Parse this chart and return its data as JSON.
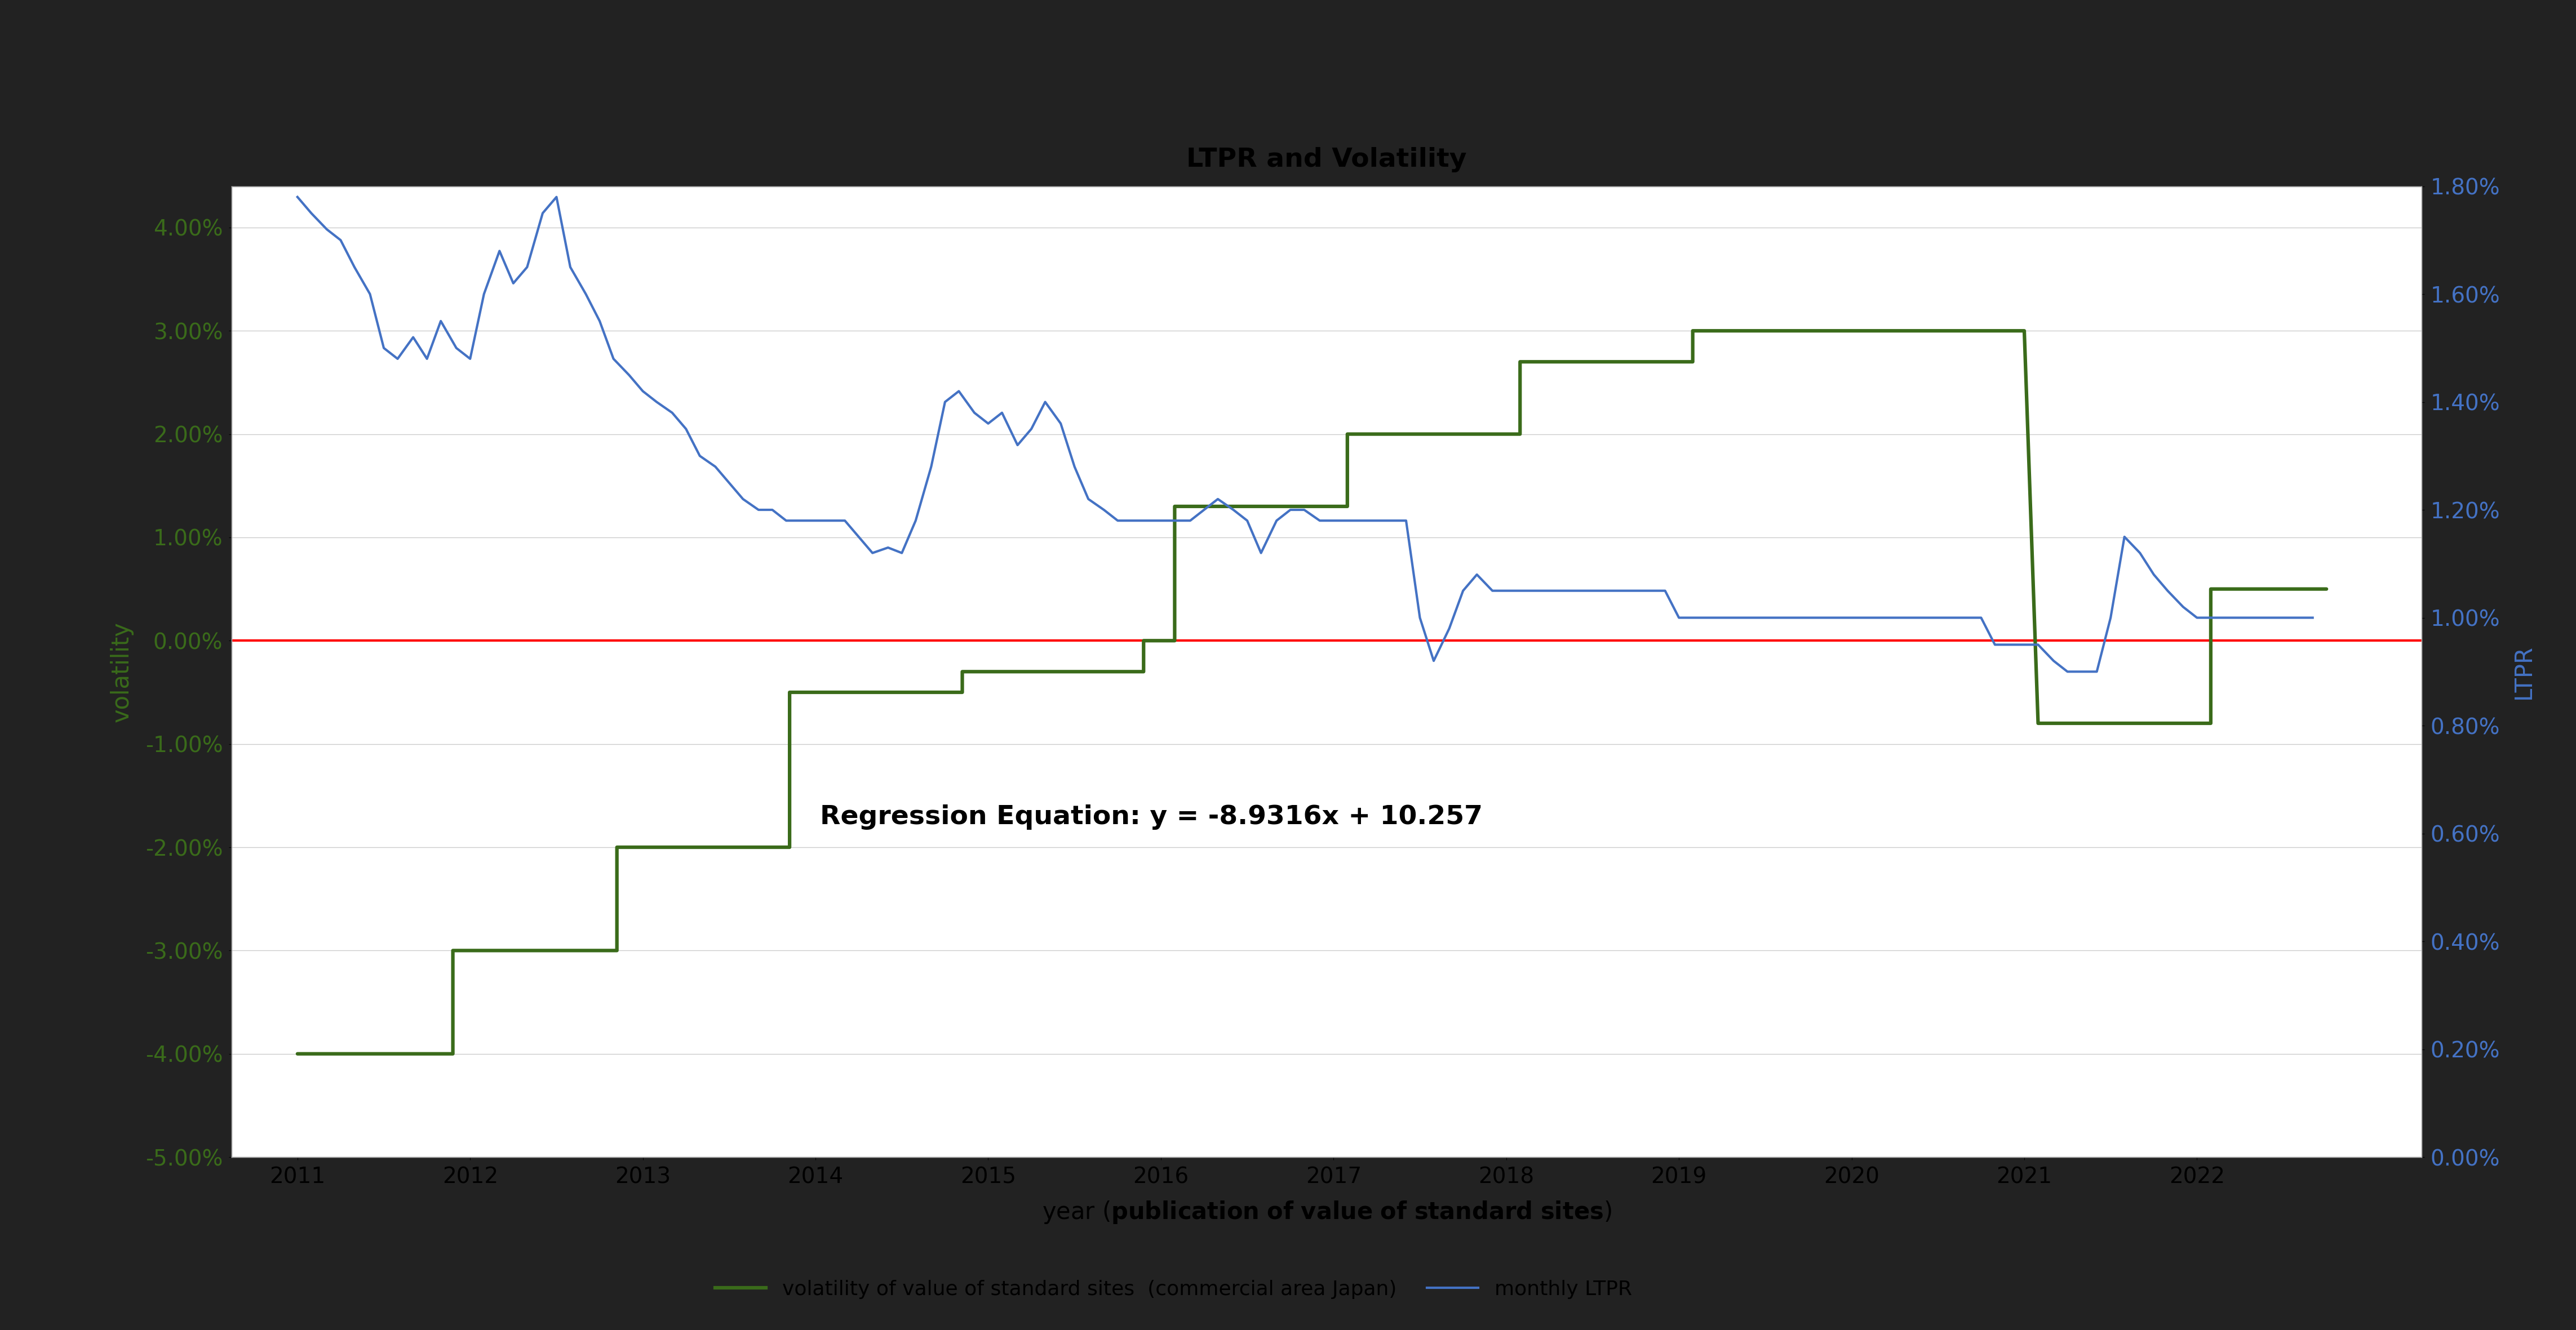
{
  "title": "LTPR and Volatility",
  "xlabel_normal": "year (",
  "xlabel_bold": "publication of value of standard sites",
  "xlabel_end": ")",
  "ylabel_left": "volatility",
  "ylabel_right": "LTPR",
  "chart_bg": "#ffffff",
  "outer_bg": "#222222",
  "regression_text": "Regression Equation: y = -8.9316x + 10.257",
  "volatility_color": "#3a6b1a",
  "ltpr_color": "#4472c4",
  "zero_line_color": "#ff0000",
  "xlim": [
    2010.62,
    2023.3
  ],
  "ylim_left": [
    -0.05,
    0.044
  ],
  "ylim_right": [
    0.0,
    0.0178
  ],
  "xticks": [
    2011,
    2012,
    2013,
    2014,
    2015,
    2016,
    2017,
    2018,
    2019,
    2020,
    2021,
    2022
  ],
  "yticks_left": [
    -0.05,
    -0.04,
    -0.03,
    -0.02,
    -0.01,
    0.0,
    0.01,
    0.02,
    0.03,
    0.04
  ],
  "yticks_right": [
    0.0,
    0.002,
    0.004,
    0.006,
    0.008,
    0.01,
    0.012,
    0.014,
    0.016,
    0.018
  ],
  "legend_vol_label": "volatility of value of standard sites  (commercial area Japan)",
  "legend_ltpr_label": "monthly LTPR",
  "green_x": [
    2011.0,
    2011.9,
    2011.9,
    2012.0,
    2012.85,
    2012.85,
    2013.0,
    2013.85,
    2013.85,
    2014.0,
    2014.85,
    2014.85,
    2015.0,
    2015.9,
    2015.9,
    2016.0,
    2016.08,
    2016.08,
    2017.0,
    2017.08,
    2017.08,
    2018.0,
    2018.08,
    2018.08,
    2019.0,
    2019.08,
    2019.08,
    2020.0,
    2020.08,
    2021.0,
    2021.0,
    2021.08,
    2021.83,
    2021.83,
    2022.08,
    2022.08,
    2022.75
  ],
  "green_y": [
    -0.04,
    -0.04,
    -0.03,
    -0.03,
    -0.03,
    -0.02,
    -0.02,
    -0.02,
    -0.005,
    -0.005,
    -0.005,
    -0.003,
    -0.003,
    -0.003,
    0.0,
    0.0,
    0.0,
    0.013,
    0.013,
    0.013,
    0.02,
    0.02,
    0.02,
    0.027,
    0.027,
    0.027,
    0.03,
    0.03,
    0.03,
    0.03,
    0.03,
    -0.008,
    -0.008,
    -0.008,
    -0.008,
    0.005,
    0.005
  ],
  "ltpr_x": [
    2011.0,
    2011.08,
    2011.17,
    2011.25,
    2011.33,
    2011.42,
    2011.5,
    2011.58,
    2011.67,
    2011.75,
    2011.83,
    2011.92,
    2012.0,
    2012.08,
    2012.17,
    2012.25,
    2012.33,
    2012.42,
    2012.5,
    2012.58,
    2012.67,
    2012.75,
    2012.83,
    2012.92,
    2013.0,
    2013.08,
    2013.17,
    2013.25,
    2013.33,
    2013.42,
    2013.5,
    2013.58,
    2013.67,
    2013.75,
    2013.83,
    2013.92,
    2014.0,
    2014.08,
    2014.17,
    2014.25,
    2014.33,
    2014.42,
    2014.5,
    2014.58,
    2014.67,
    2014.75,
    2014.83,
    2014.92,
    2015.0,
    2015.08,
    2015.17,
    2015.25,
    2015.33,
    2015.42,
    2015.5,
    2015.58,
    2015.67,
    2015.75,
    2015.83,
    2015.92,
    2016.0,
    2016.08,
    2016.17,
    2016.25,
    2016.33,
    2016.42,
    2016.5,
    2016.58,
    2016.67,
    2016.75,
    2016.83,
    2016.92,
    2017.0,
    2017.08,
    2017.17,
    2017.25,
    2017.33,
    2017.42,
    2017.5,
    2017.58,
    2017.67,
    2017.75,
    2017.83,
    2017.92,
    2018.0,
    2018.08,
    2018.17,
    2018.25,
    2018.33,
    2018.42,
    2018.5,
    2018.58,
    2018.67,
    2018.75,
    2018.83,
    2018.92,
    2019.0,
    2019.08,
    2019.17,
    2019.25,
    2019.33,
    2019.42,
    2019.5,
    2019.58,
    2019.67,
    2019.75,
    2019.83,
    2019.92,
    2020.0,
    2020.08,
    2020.17,
    2020.25,
    2020.33,
    2020.42,
    2020.5,
    2020.58,
    2020.67,
    2020.75,
    2020.83,
    2020.92,
    2021.0,
    2021.08,
    2021.17,
    2021.25,
    2021.33,
    2021.42,
    2021.5,
    2021.58,
    2021.67,
    2021.75,
    2021.83,
    2021.92,
    2022.0,
    2022.08,
    2022.17,
    2022.25,
    2022.33,
    2022.42,
    2022.5,
    2022.58,
    2022.67
  ],
  "ltpr_y": [
    0.0178,
    0.0175,
    0.0172,
    0.017,
    0.0165,
    0.016,
    0.015,
    0.0148,
    0.0152,
    0.0148,
    0.0155,
    0.015,
    0.0148,
    0.016,
    0.0168,
    0.0162,
    0.0165,
    0.0175,
    0.0178,
    0.0165,
    0.016,
    0.0155,
    0.0148,
    0.0145,
    0.0142,
    0.014,
    0.0138,
    0.0135,
    0.013,
    0.0128,
    0.0125,
    0.0122,
    0.012,
    0.012,
    0.0118,
    0.0118,
    0.0118,
    0.0118,
    0.0118,
    0.0115,
    0.0112,
    0.0113,
    0.0112,
    0.0118,
    0.0128,
    0.014,
    0.0142,
    0.0138,
    0.0136,
    0.0138,
    0.0132,
    0.0135,
    0.014,
    0.0136,
    0.0128,
    0.0122,
    0.012,
    0.0118,
    0.0118,
    0.0118,
    0.0118,
    0.0118,
    0.0118,
    0.012,
    0.0122,
    0.012,
    0.0118,
    0.0112,
    0.0118,
    0.012,
    0.012,
    0.0118,
    0.0118,
    0.0118,
    0.0118,
    0.0118,
    0.0118,
    0.0118,
    0.01,
    0.0092,
    0.0098,
    0.0105,
    0.0108,
    0.0105,
    0.0105,
    0.0105,
    0.0105,
    0.0105,
    0.0105,
    0.0105,
    0.0105,
    0.0105,
    0.0105,
    0.0105,
    0.0105,
    0.0105,
    0.01,
    0.01,
    0.01,
    0.01,
    0.01,
    0.01,
    0.01,
    0.01,
    0.01,
    0.01,
    0.01,
    0.01,
    0.01,
    0.01,
    0.01,
    0.01,
    0.01,
    0.01,
    0.01,
    0.01,
    0.01,
    0.01,
    0.0095,
    0.0095,
    0.0095,
    0.0095,
    0.0092,
    0.009,
    0.009,
    0.009,
    0.01,
    0.0115,
    0.0112,
    0.0108,
    0.0105,
    0.0102,
    0.01,
    0.01,
    0.01,
    0.01,
    0.01,
    0.01,
    0.01,
    0.01,
    0.01
  ]
}
